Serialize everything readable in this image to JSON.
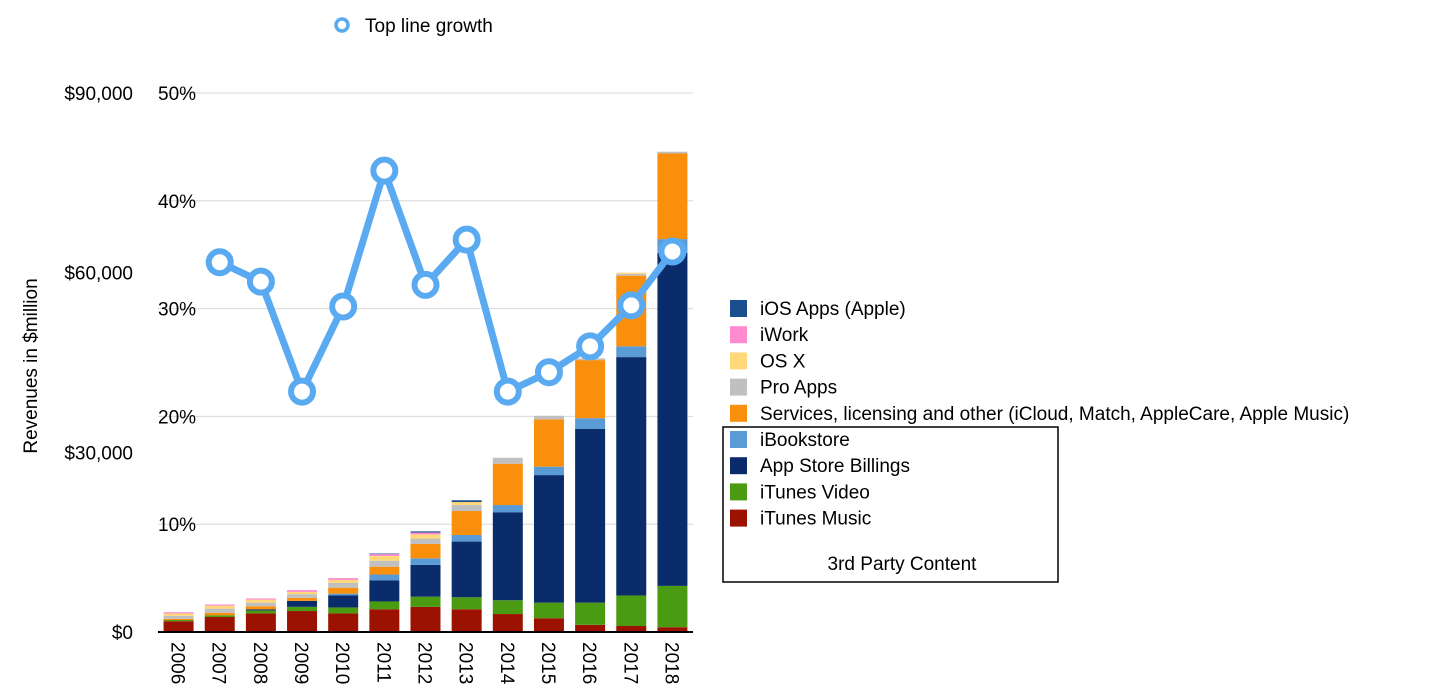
{
  "chart_data": {
    "type": "bar",
    "stacked": true,
    "ylabel": "Revenues in $million",
    "ylim": [
      0,
      90000
    ],
    "y_ticks": [
      "$0",
      "$30,000",
      "$60,000",
      "$90,000"
    ],
    "y2lim": [
      0,
      50
    ],
    "y2_ticks": [
      "10%",
      "20%",
      "30%",
      "40%",
      "50%"
    ],
    "grid": true,
    "categories": [
      "2006",
      "2007",
      "2008",
      "2009",
      "2010",
      "2011",
      "2012",
      "2013",
      "2014",
      "2015",
      "2016",
      "2017",
      "2018"
    ],
    "series": [
      {
        "name": "iTunes Music",
        "color": "#9b1200",
        "values": [
          1800,
          2500,
          3100,
          3500,
          3100,
          3800,
          4200,
          3800,
          3000,
          2300,
          1200,
          1000,
          800
        ]
      },
      {
        "name": "iTunes Video",
        "color": "#4b9b12",
        "values": [
          200,
          300,
          500,
          700,
          1000,
          1300,
          1700,
          2000,
          2300,
          2600,
          3700,
          5100,
          6900
        ]
      },
      {
        "name": "App Store Billings",
        "color": "#0b2c6b",
        "values": [
          0,
          0,
          200,
          1000,
          2000,
          3500,
          5300,
          9300,
          14700,
          21300,
          29000,
          39800,
          55600
        ]
      },
      {
        "name": "iBookstore",
        "color": "#5b9bd5",
        "values": [
          0,
          0,
          0,
          0,
          300,
          1000,
          1100,
          1100,
          1200,
          1400,
          1800,
          1800,
          2300
        ]
      },
      {
        "name": "Services, licensing and other (iCloud, Match, AppleCare, Apple Music)",
        "color": "#f98f0a",
        "values": [
          200,
          400,
          500,
          500,
          1000,
          1300,
          2400,
          4000,
          6900,
          7900,
          9700,
          11800,
          14300
        ]
      },
      {
        "name": "Pro Apps",
        "color": "#c0c0c0",
        "values": [
          500,
          700,
          600,
          600,
          800,
          1000,
          900,
          1000,
          1000,
          600,
          300,
          300,
          300
        ]
      },
      {
        "name": "OS X",
        "color": "#ffd87a",
        "values": [
          400,
          500,
          500,
          400,
          500,
          800,
          700,
          500,
          0,
          0,
          0,
          200,
          0
        ]
      },
      {
        "name": "iWork",
        "color": "#ff8ad0",
        "values": [
          200,
          200,
          200,
          300,
          300,
          300,
          300,
          0,
          0,
          0,
          0,
          0,
          0
        ]
      },
      {
        "name": "iOS Apps (Apple)",
        "color": "#1a4e8c",
        "values": [
          0,
          0,
          0,
          0,
          0,
          100,
          200,
          300,
          0,
          0,
          0,
          0,
          0
        ]
      }
    ],
    "line_series": {
      "name": "Top line growth",
      "color": "#5aaaf2",
      "axis": "right",
      "values": [
        null,
        34.3,
        32.5,
        22.3,
        30.2,
        42.8,
        32.2,
        36.4,
        22.3,
        24.1,
        26.5,
        30.3,
        35.3
      ]
    },
    "legend": {
      "entries": [
        "iOS Apps (Apple)",
        "iWork",
        "OS X",
        "Pro Apps",
        "Services, licensing and other (iCloud, Match, AppleCare, Apple Music)",
        "iBookstore",
        "App Store Billings",
        "iTunes Video",
        "iTunes Music"
      ],
      "placement": "right",
      "group_label": "3rd Party Content",
      "line_entry": "Top line growth"
    }
  }
}
